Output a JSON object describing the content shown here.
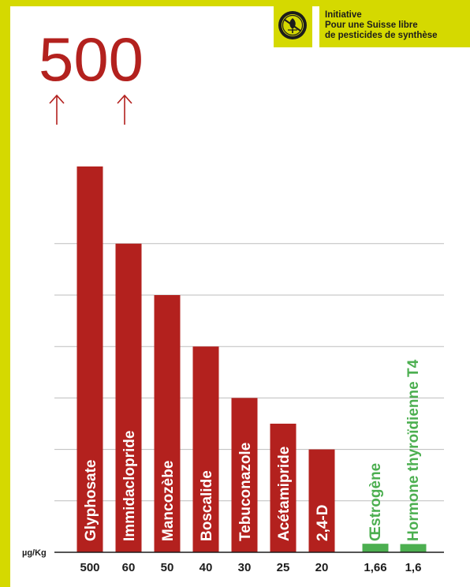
{
  "brand": {
    "logo_name": "pesticide-free-initiative-logo",
    "lines": [
      "Initiative",
      "Pour une Suisse libre",
      "de pesticides de synthèse"
    ],
    "panel_color": "#d5d900"
  },
  "chart_data": {
    "type": "bar",
    "unit_label": "µg/Kg",
    "axis_broken_label": "500",
    "categories": [
      "Glyphosate",
      "Immidaclopride",
      "Mancozèbe",
      "Boscalide",
      "Tebuconazole",
      "Acétamipride",
      "2,4-D",
      "Œstrogène",
      "Hormone thyroïdienne T4"
    ],
    "values": [
      500,
      60,
      50,
      40,
      30,
      25,
      20,
      1.66,
      1.6
    ],
    "value_labels": [
      "500",
      "60",
      "50",
      "40",
      "30",
      "25",
      "20",
      "1,66",
      "1,6"
    ],
    "groups": [
      "pesticide",
      "pesticide",
      "pesticide",
      "pesticide",
      "pesticide",
      "pesticide",
      "pesticide",
      "hormone",
      "hormone"
    ],
    "display_values": [
      75,
      60,
      50,
      40,
      30,
      25,
      20,
      1.66,
      1.6
    ],
    "ylim": [
      0,
      75
    ],
    "gridlines": [
      10,
      20,
      30,
      40,
      50,
      60
    ],
    "colors": {
      "pesticide": "#b3211e",
      "hormone": "#4caf50",
      "grid": "#bdbdbd",
      "axis": "#1c1c1c"
    }
  }
}
